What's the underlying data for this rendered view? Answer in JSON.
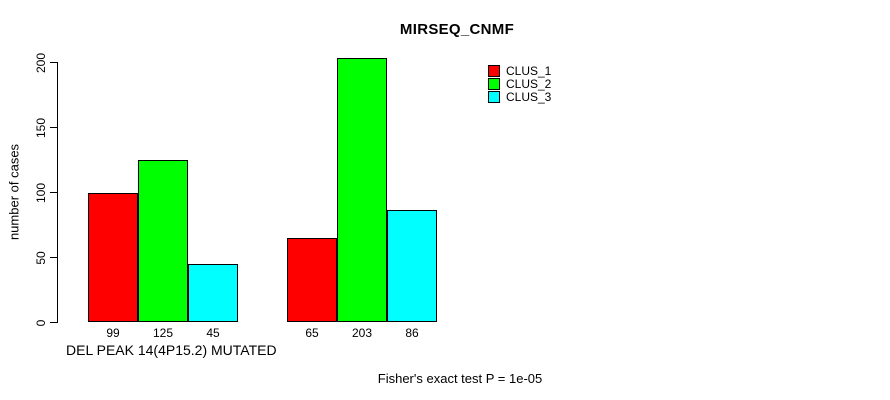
{
  "title": "MIRSEQ_CNMF",
  "chart_data": {
    "type": "bar",
    "title": "MIRSEQ_CNMF",
    "categories": [
      "DEL PEAK 14(4P15.2) MUTATED",
      ""
    ],
    "series": [
      {
        "name": "CLUS_1",
        "color": "#ff0000",
        "values": [
          99,
          65
        ]
      },
      {
        "name": "CLUS_2",
        "color": "#00ff00",
        "values": [
          125,
          203
        ]
      },
      {
        "name": "CLUS_3",
        "color": "#00ffff",
        "values": [
          45,
          86
        ]
      }
    ],
    "ylabel": "number of cases",
    "xlabel": "",
    "yticks": [
      0,
      50,
      100,
      150,
      200
    ],
    "ylim": [
      0,
      200
    ],
    "bar_value_labels_shown": true,
    "legend_position": "top-right",
    "grid": false
  },
  "footer": {
    "caption": "Fisher's exact test P = 1e-05"
  }
}
